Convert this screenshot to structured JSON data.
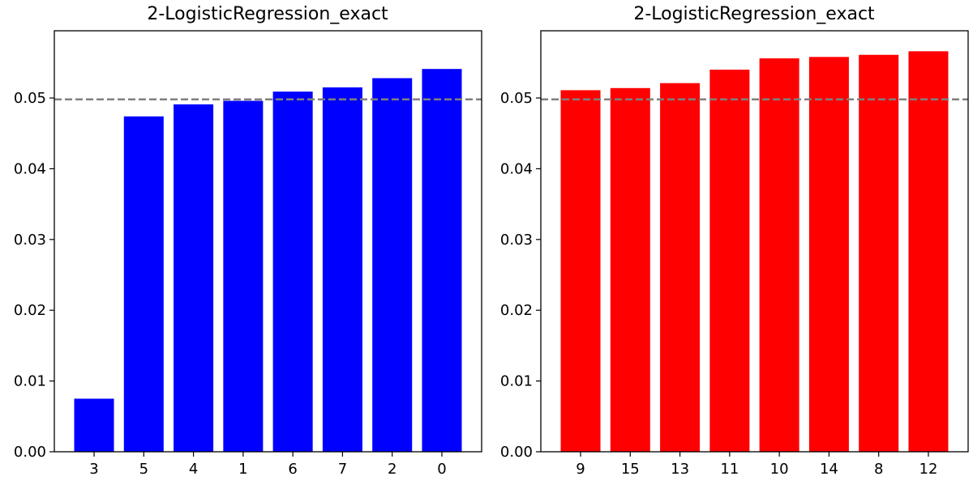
{
  "chart_data": [
    {
      "type": "bar",
      "title": "2-LogisticRegression_exact",
      "xlabel": "",
      "ylabel": "",
      "categories": [
        "3",
        "5",
        "4",
        "1",
        "6",
        "7",
        "2",
        "0"
      ],
      "values": [
        0.0075,
        0.0474,
        0.0491,
        0.0496,
        0.0509,
        0.0515,
        0.0528,
        0.0541
      ],
      "color": "#0000ff",
      "reference_line": {
        "y": 0.0498,
        "style": "dashed",
        "color": "#808080"
      },
      "ylim": [
        0,
        0.0595
      ],
      "yticks": [
        "0.00",
        "0.01",
        "0.02",
        "0.03",
        "0.04",
        "0.05"
      ],
      "grid": false
    },
    {
      "type": "bar",
      "title": "2-LogisticRegression_exact",
      "xlabel": "",
      "ylabel": "",
      "categories": [
        "9",
        "15",
        "13",
        "11",
        "10",
        "14",
        "8",
        "12"
      ],
      "values": [
        0.0511,
        0.0514,
        0.0521,
        0.054,
        0.0556,
        0.0558,
        0.0561,
        0.0566
      ],
      "color": "#ff0000",
      "reference_line": {
        "y": 0.0498,
        "style": "dashed",
        "color": "#808080"
      },
      "ylim": [
        0,
        0.0595
      ],
      "yticks": [
        "0.00",
        "0.01",
        "0.02",
        "0.03",
        "0.04",
        "0.05"
      ],
      "grid": false
    }
  ]
}
